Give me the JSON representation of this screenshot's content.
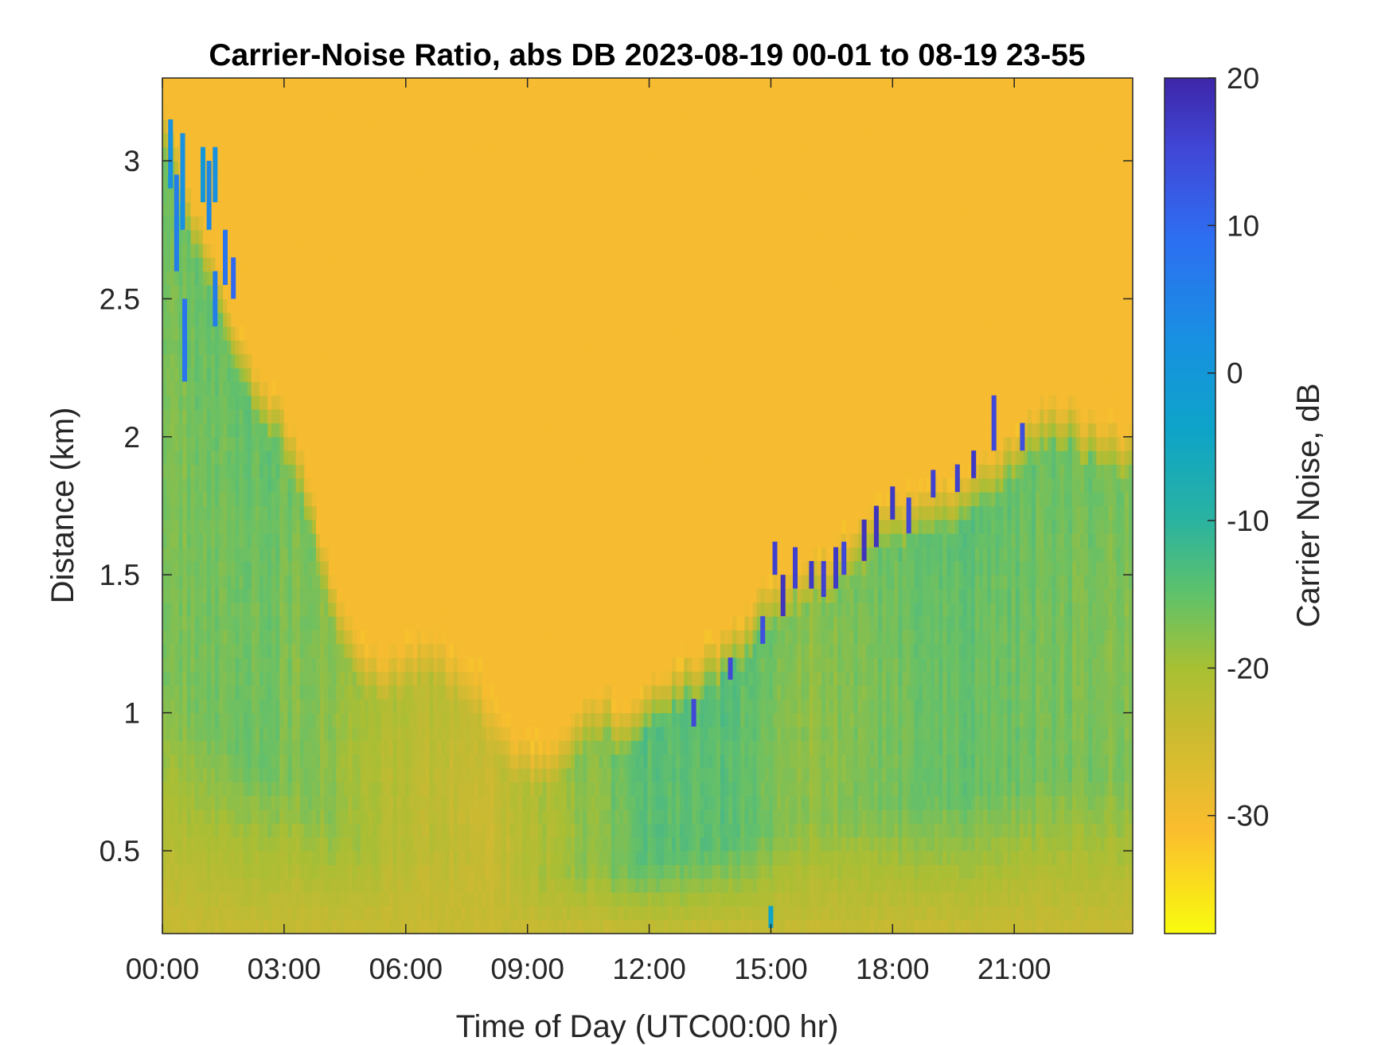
{
  "chart_data": {
    "type": "heatmap",
    "title": "Carrier-Noise Ratio, abs DB 2023-08-19 00-01 to 08-19 23-55",
    "xlabel": "Time of Day (UTC00:00 hr)",
    "ylabel": "Distance (km)",
    "colorbar_label": "Carrier Noise, dB",
    "x_ticks": [
      {
        "value": 0,
        "label": "00:00"
      },
      {
        "value": 3,
        "label": "03:00"
      },
      {
        "value": 6,
        "label": "06:00"
      },
      {
        "value": 9,
        "label": "09:00"
      },
      {
        "value": 12,
        "label": "12:00"
      },
      {
        "value": 15,
        "label": "15:00"
      },
      {
        "value": 18,
        "label": "18:00"
      },
      {
        "value": 21,
        "label": "21:00"
      }
    ],
    "y_ticks": [
      {
        "value": 0.5,
        "label": "0.5"
      },
      {
        "value": 1,
        "label": "1"
      },
      {
        "value": 1.5,
        "label": "1.5"
      },
      {
        "value": 2,
        "label": "2"
      },
      {
        "value": 2.5,
        "label": "2.5"
      },
      {
        "value": 3,
        "label": "3"
      }
    ],
    "c_ticks": [
      {
        "value": -30,
        "label": "-30"
      },
      {
        "value": -20,
        "label": "-20"
      },
      {
        "value": -10,
        "label": "-10"
      },
      {
        "value": 0,
        "label": "0"
      },
      {
        "value": 10,
        "label": "10"
      },
      {
        "value": 20,
        "label": "20"
      }
    ],
    "xlim": [
      0,
      23.92
    ],
    "ylim": [
      0.2,
      3.3
    ],
    "clim": [
      -38,
      20
    ],
    "colormap": "parula (reversed: yellow = low, dark blue = high)",
    "colormap_stops": [
      {
        "value": -38,
        "color": "#f9fb0e"
      },
      {
        "value": -31,
        "color": "#fbbd2e"
      },
      {
        "value": -24,
        "color": "#c8bb30"
      },
      {
        "value": -20,
        "color": "#a8c032"
      },
      {
        "value": -15,
        "color": "#5fc26a"
      },
      {
        "value": -10,
        "color": "#2ab3a0"
      },
      {
        "value": -4,
        "color": "#0ea4c8"
      },
      {
        "value": 2,
        "color": "#1791e0"
      },
      {
        "value": 9,
        "color": "#2d6ff2"
      },
      {
        "value": 15,
        "color": "#4048d8"
      },
      {
        "value": 20,
        "color": "#3e26a8"
      }
    ],
    "background_level_db": -31,
    "near_range_level_db": -24,
    "boundary_layer_top": {
      "time_hr": [
        0,
        0.5,
        1,
        1.5,
        2,
        2.5,
        3,
        3.5,
        4,
        4.5,
        5,
        5.5,
        6,
        6.5,
        7,
        7.5,
        8,
        8.5,
        9,
        9.5,
        10,
        10.5,
        11,
        11.5,
        12,
        12.5,
        13,
        13.5,
        14,
        14.5,
        15,
        15.5,
        16,
        16.5,
        17,
        17.5,
        18,
        18.5,
        19,
        19.5,
        20,
        20.5,
        21,
        21.5,
        22,
        22.5,
        23,
        23.92
      ],
      "height_km": [
        3.2,
        2.9,
        2.7,
        2.5,
        2.3,
        2.15,
        2.05,
        1.85,
        1.55,
        1.3,
        1.2,
        1.15,
        1.2,
        1.25,
        1.2,
        1.15,
        1.05,
        0.9,
        0.85,
        0.85,
        0.9,
        1.0,
        1.02,
        0.95,
        1.05,
        1.1,
        1.15,
        1.2,
        1.25,
        1.32,
        1.45,
        1.5,
        1.52,
        1.55,
        1.6,
        1.68,
        1.72,
        1.75,
        1.78,
        1.8,
        1.85,
        1.9,
        1.95,
        2.05,
        2.1,
        2.05,
        2.0,
        1.95
      ]
    },
    "mixed_layer_level_db": [
      {
        "time_hr": 0,
        "db": -16
      },
      {
        "time_hr": 2,
        "db": -14
      },
      {
        "time_hr": 4,
        "db": -17
      },
      {
        "time_hr": 6,
        "db": -21
      },
      {
        "time_hr": 8,
        "db": -23
      },
      {
        "time_hr": 10,
        "db": -18
      },
      {
        "time_hr": 12,
        "db": -13
      },
      {
        "time_hr": 14,
        "db": -13
      },
      {
        "time_hr": 16,
        "db": -17
      },
      {
        "time_hr": 18,
        "db": -15
      },
      {
        "time_hr": 20,
        "db": -14
      },
      {
        "time_hr": 22,
        "db": -15
      },
      {
        "time_hr": 23.92,
        "db": -16
      }
    ],
    "high_signal_features": [
      {
        "time_hr": 0.2,
        "km_from": 2.9,
        "km_to": 3.15,
        "db": 2
      },
      {
        "time_hr": 0.35,
        "km_from": 2.6,
        "km_to": 2.95,
        "db": 6
      },
      {
        "time_hr": 0.5,
        "km_from": 2.75,
        "km_to": 3.1,
        "db": 2
      },
      {
        "time_hr": 0.55,
        "km_from": 2.2,
        "km_to": 2.5,
        "db": 8
      },
      {
        "time_hr": 1.0,
        "km_from": 2.85,
        "km_to": 3.05,
        "db": 0
      },
      {
        "time_hr": 1.15,
        "km_from": 2.75,
        "km_to": 3.0,
        "db": 4
      },
      {
        "time_hr": 1.3,
        "km_from": 2.85,
        "km_to": 3.05,
        "db": 2
      },
      {
        "time_hr": 1.3,
        "km_from": 2.4,
        "km_to": 2.6,
        "db": 6
      },
      {
        "time_hr": 1.55,
        "km_from": 2.55,
        "km_to": 2.75,
        "db": 8
      },
      {
        "time_hr": 1.75,
        "km_from": 2.5,
        "km_to": 2.65,
        "db": 10
      },
      {
        "time_hr": 13.1,
        "km_from": 0.95,
        "km_to": 1.05,
        "db": 15
      },
      {
        "time_hr": 14.0,
        "km_from": 1.12,
        "km_to": 1.2,
        "db": 15
      },
      {
        "time_hr": 14.8,
        "km_from": 1.25,
        "km_to": 1.35,
        "db": 14
      },
      {
        "time_hr": 15.1,
        "km_from": 1.5,
        "km_to": 1.62,
        "db": 16
      },
      {
        "time_hr": 15.3,
        "km_from": 1.35,
        "km_to": 1.5,
        "db": 18
      },
      {
        "time_hr": 15.6,
        "km_from": 1.45,
        "km_to": 1.6,
        "db": 16
      },
      {
        "time_hr": 16.0,
        "km_from": 1.45,
        "km_to": 1.55,
        "db": 17
      },
      {
        "time_hr": 16.3,
        "km_from": 1.42,
        "km_to": 1.55,
        "db": 16
      },
      {
        "time_hr": 16.6,
        "km_from": 1.45,
        "km_to": 1.6,
        "db": 17
      },
      {
        "time_hr": 16.8,
        "km_from": 1.5,
        "km_to": 1.62,
        "db": 15
      },
      {
        "time_hr": 17.3,
        "km_from": 1.55,
        "km_to": 1.7,
        "db": 18
      },
      {
        "time_hr": 17.6,
        "km_from": 1.6,
        "km_to": 1.75,
        "db": 18
      },
      {
        "time_hr": 18.0,
        "km_from": 1.7,
        "km_to": 1.82,
        "db": 17
      },
      {
        "time_hr": 18.4,
        "km_from": 1.65,
        "km_to": 1.78,
        "db": 15
      },
      {
        "time_hr": 19.0,
        "km_from": 1.78,
        "km_to": 1.88,
        "db": 16
      },
      {
        "time_hr": 19.6,
        "km_from": 1.8,
        "km_to": 1.9,
        "db": 16
      },
      {
        "time_hr": 20.0,
        "km_from": 1.85,
        "km_to": 1.95,
        "db": 17
      },
      {
        "time_hr": 20.5,
        "km_from": 1.95,
        "km_to": 2.15,
        "db": 15
      },
      {
        "time_hr": 21.2,
        "km_from": 1.95,
        "km_to": 2.05,
        "db": 14
      },
      {
        "time_hr": 15.0,
        "km_from": 0.22,
        "km_to": 0.3,
        "db": -4
      }
    ]
  }
}
